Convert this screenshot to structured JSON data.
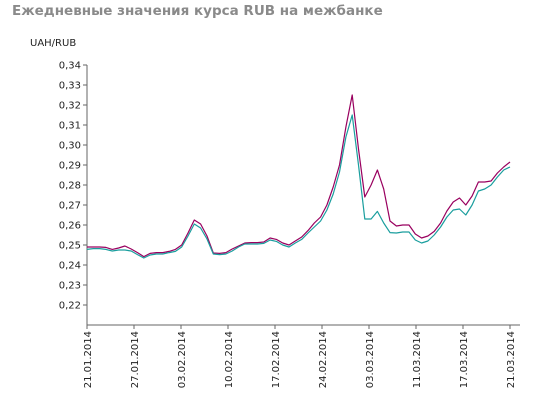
{
  "chart_data": {
    "type": "line",
    "title": "Ежедневные значения курса RUB на межбанке",
    "ylabel": "UAH/RUB",
    "xlabel": "",
    "ylim": [
      0.21,
      0.34
    ],
    "y_ticks": [
      "0,22",
      "0,23",
      "0,24",
      "0,25",
      "0,26",
      "0,27",
      "0,28",
      "0,29",
      "0,30",
      "0,31",
      "0,32",
      "0,33",
      "0,34"
    ],
    "x_tick_labels": [
      "21.01.2014",
      "27.01.2014",
      "03.02.2014",
      "10.02.2014",
      "17.02.2014",
      "24.02.2014",
      "03.03.2014",
      "11.03.2014",
      "17.03.2014",
      "21.03.2014"
    ],
    "grid": false,
    "legend": "none",
    "colors": {
      "series1": "#99005f",
      "series2": "#1a9e9e",
      "axis": "#666666"
    },
    "series": [
      {
        "values": [
          0.249,
          0.249,
          0.249,
          0.2488,
          0.2478,
          0.2485,
          0.2495,
          0.248,
          0.2462,
          0.2442,
          0.2458,
          0.2462,
          0.2462,
          0.2468,
          0.2478,
          0.25,
          0.256,
          0.2625,
          0.2605,
          0.2545,
          0.246,
          0.2458,
          0.2462,
          0.248,
          0.2495,
          0.251,
          0.2512,
          0.2512,
          0.2515,
          0.2535,
          0.2528,
          0.251,
          0.25,
          0.252,
          0.254,
          0.2572,
          0.261,
          0.264,
          0.27,
          0.279,
          0.29,
          0.309,
          0.325,
          0.298,
          0.274,
          0.28,
          0.2875,
          0.278,
          0.262,
          0.2595,
          0.26,
          0.26,
          0.2555,
          0.2535,
          0.2545,
          0.2568,
          0.261,
          0.267,
          0.2715,
          0.2735,
          0.27,
          0.2745,
          0.2815,
          0.2815,
          0.282,
          0.286,
          0.289,
          0.2915
        ]
      },
      {
        "values": [
          0.2478,
          0.2482,
          0.2482,
          0.2478,
          0.247,
          0.2475,
          0.2475,
          0.247,
          0.2452,
          0.2435,
          0.245,
          0.2455,
          0.2455,
          0.2462,
          0.2468,
          0.249,
          0.2545,
          0.2605,
          0.2585,
          0.253,
          0.2455,
          0.2452,
          0.2455,
          0.247,
          0.249,
          0.2505,
          0.2505,
          0.2505,
          0.2508,
          0.2525,
          0.2518,
          0.25,
          0.249,
          0.251,
          0.2528,
          0.256,
          0.259,
          0.262,
          0.2675,
          0.2755,
          0.2865,
          0.304,
          0.315,
          0.29,
          0.263,
          0.263,
          0.2668,
          0.261,
          0.2562,
          0.256,
          0.2565,
          0.2565,
          0.2525,
          0.251,
          0.252,
          0.255,
          0.259,
          0.264,
          0.2675,
          0.268,
          0.265,
          0.27,
          0.277,
          0.278,
          0.28,
          0.284,
          0.2875,
          0.289
        ]
      }
    ]
  }
}
